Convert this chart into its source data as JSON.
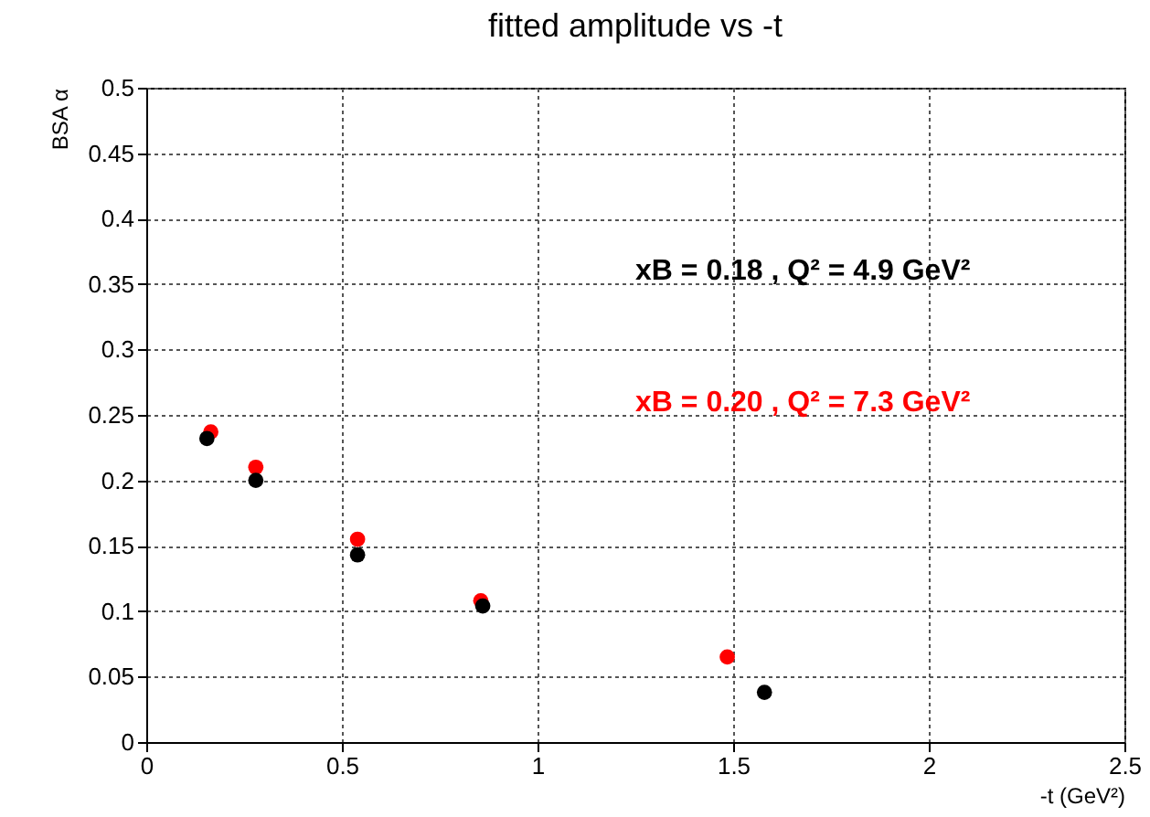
{
  "chart_data": {
    "type": "scatter",
    "title": "fitted amplitude vs -t",
    "xlabel": "-t (GeV²)",
    "ylabel": "BSA α",
    "xlim": [
      0,
      2.5
    ],
    "xticks": [
      0,
      0.5,
      1,
      1.5,
      2,
      2.5
    ],
    "ylim": [
      0,
      0.5
    ],
    "yticks": [
      0,
      0.05,
      0.1,
      0.15,
      0.2,
      0.25,
      0.3,
      0.35,
      0.4,
      0.45,
      0.5
    ],
    "grid": true,
    "marker": "circle",
    "series": [
      {
        "name": "xB = 0.18 , Q² = 4.9 GeV²",
        "color": "#000000",
        "x": [
          0.155,
          0.28,
          0.54,
          0.86,
          1.58
        ],
        "values": [
          0.232,
          0.2,
          0.143,
          0.104,
          0.038
        ]
      },
      {
        "name": "xB = 0.20 , Q² = 7.3 GeV²",
        "color": "#ff0000",
        "x": [
          0.165,
          0.28,
          0.54,
          0.855,
          1.485
        ],
        "values": [
          0.237,
          0.21,
          0.155,
          0.108,
          0.065
        ]
      }
    ]
  }
}
